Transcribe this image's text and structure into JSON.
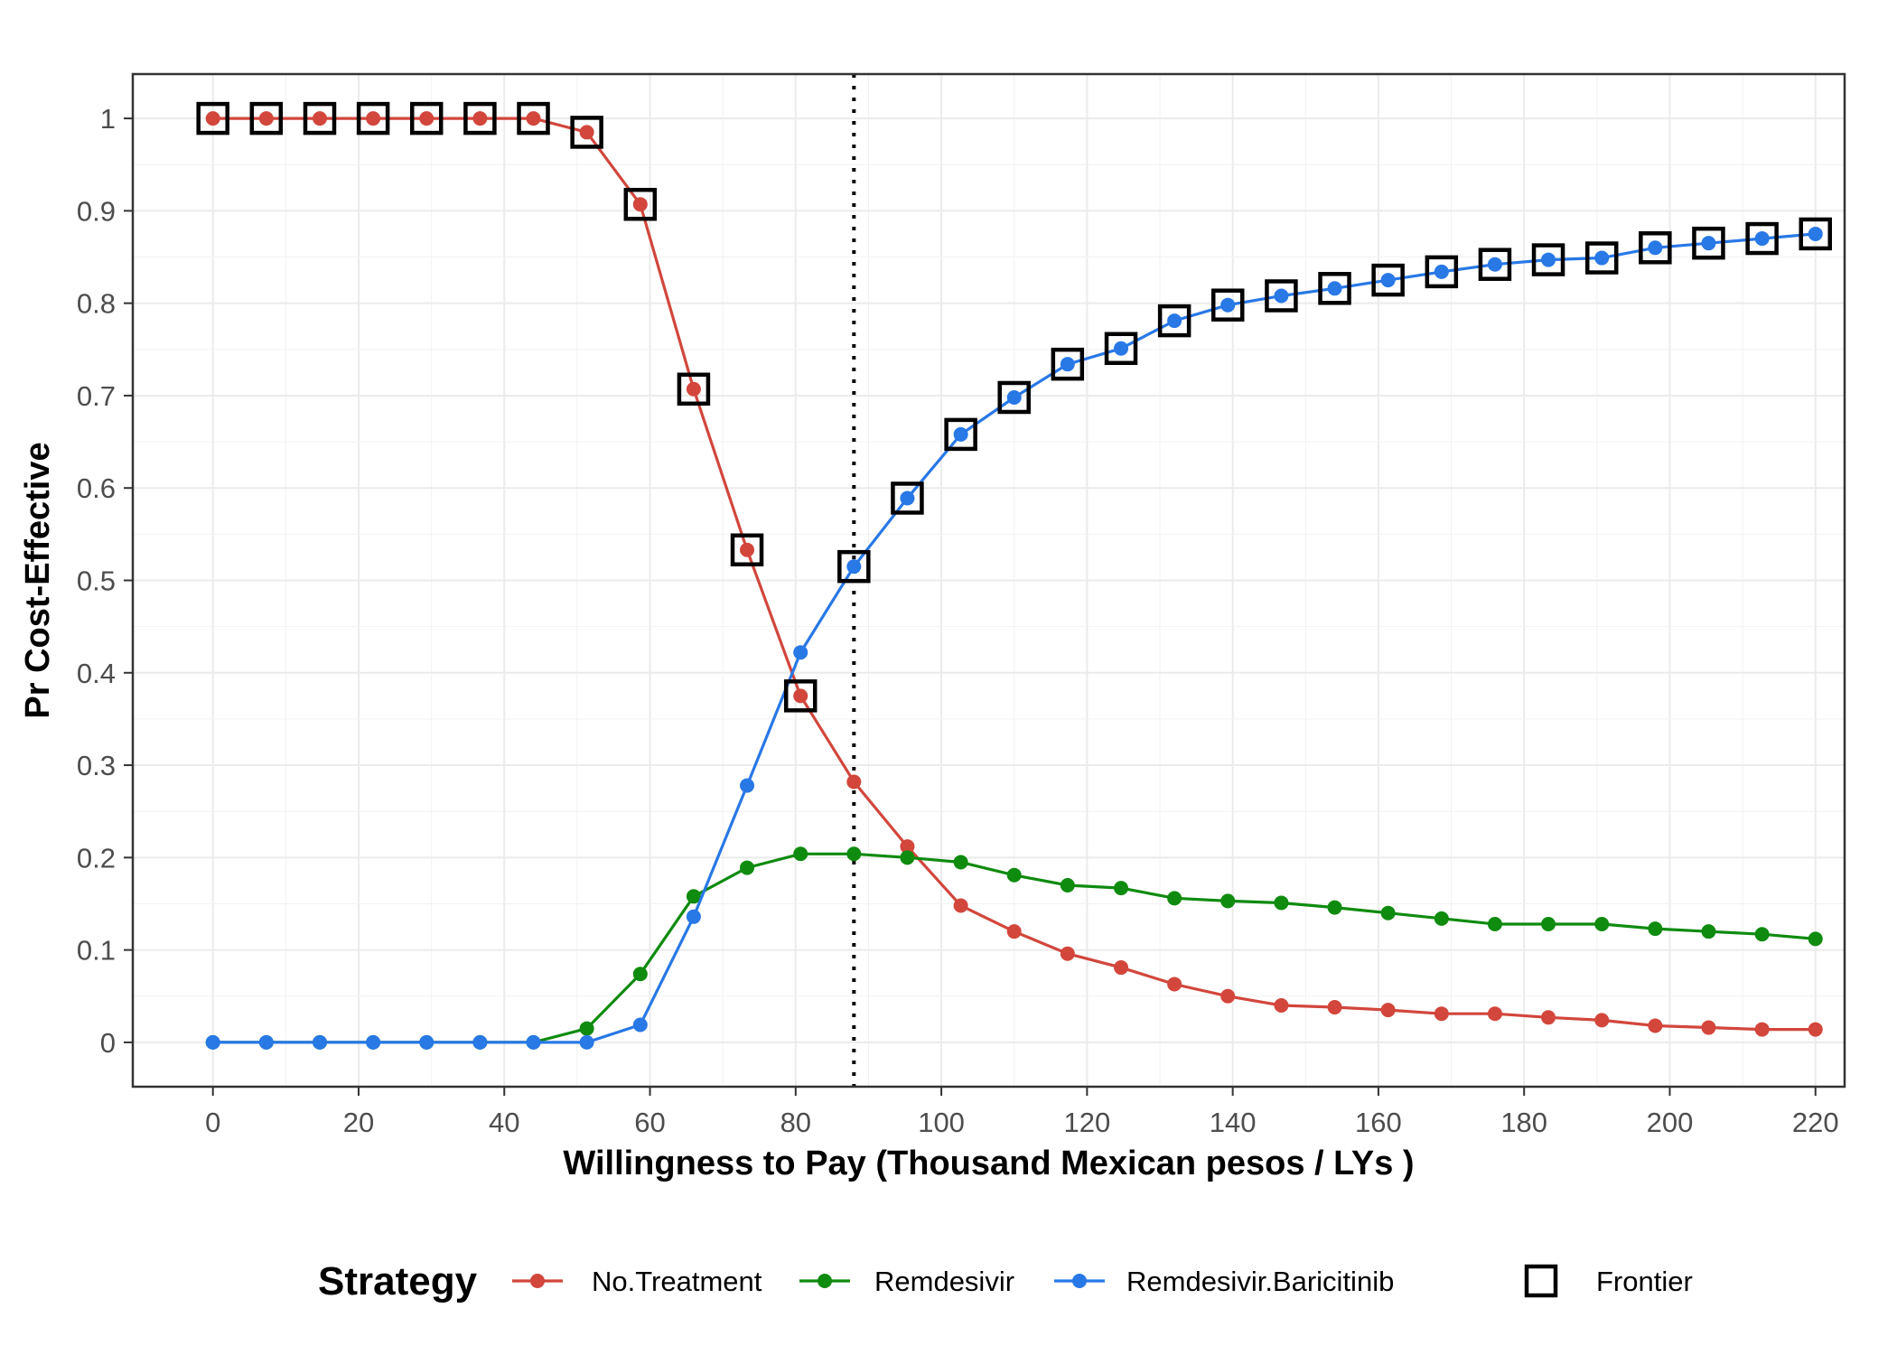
{
  "chart_data": {
    "type": "line",
    "xlabel": "Willingness to Pay (Thousand Mexican pesos / LYs )",
    "ylabel": "Pr Cost-Effective",
    "xlim": [
      -11,
      224
    ],
    "ylim": [
      -0.048,
      1.048
    ],
    "x_ticks": [
      0,
      20,
      40,
      60,
      80,
      100,
      120,
      140,
      160,
      180,
      200,
      220
    ],
    "x_tick_labels": [
      "0",
      "20",
      "40",
      "60",
      "80",
      "100",
      "120",
      "140",
      "160",
      "180",
      "200",
      "220"
    ],
    "y_ticks": [
      0,
      0.1,
      0.2,
      0.3,
      0.4,
      0.5,
      0.6,
      0.7,
      0.8,
      0.9,
      1
    ],
    "y_tick_labels": [
      "0",
      "0.1",
      "0.2",
      "0.3",
      "0.4",
      "0.5",
      "0.6",
      "0.7",
      "0.8",
      "0.9",
      "1"
    ],
    "grid": true,
    "reference_line": {
      "x": 88,
      "style": "dotted"
    },
    "x": [
      0,
      7.33,
      14.67,
      22,
      29.33,
      36.67,
      44,
      51.33,
      58.67,
      66,
      73.33,
      80.67,
      88,
      95.33,
      102.67,
      110,
      117.33,
      124.67,
      132,
      139.33,
      146.67,
      154,
      161.33,
      168.67,
      176,
      183.33,
      190.67,
      198,
      205.33,
      212.67,
      220
    ],
    "series": [
      {
        "name": "No.Treatment",
        "color": "#d2463c",
        "values": [
          1,
          1,
          1,
          1,
          1,
          1,
          1,
          0.985,
          0.907,
          0.707,
          0.533,
          0.375,
          0.282,
          0.212,
          0.148,
          0.12,
          0.096,
          0.081,
          0.063,
          0.05,
          0.04,
          0.038,
          0.035,
          0.031,
          0.031,
          0.027,
          0.024,
          0.018,
          0.016,
          0.014,
          0.014
        ]
      },
      {
        "name": "Remdesivir",
        "color": "#0f8b0f",
        "values": [
          0,
          0,
          0,
          0,
          0,
          0,
          0,
          0.015,
          0.074,
          0.158,
          0.189,
          0.204,
          0.204,
          0.2,
          0.195,
          0.181,
          0.17,
          0.167,
          0.156,
          0.153,
          0.151,
          0.146,
          0.14,
          0.134,
          0.128,
          0.128,
          0.128,
          0.123,
          0.12,
          0.117,
          0.112
        ]
      },
      {
        "name": "Remdesivir.Baricitinib",
        "color": "#2878e6",
        "values": [
          0,
          0,
          0,
          0,
          0,
          0,
          0,
          0,
          0.019,
          0.136,
          0.278,
          0.422,
          0.515,
          0.589,
          0.658,
          0.698,
          0.734,
          0.751,
          0.781,
          0.798,
          0.808,
          0.816,
          0.825,
          0.834,
          0.842,
          0.847,
          0.849,
          0.86,
          0.865,
          0.87,
          0.875
        ]
      }
    ],
    "frontier": {
      "name": "Frontier",
      "points": [
        [
          0,
          1
        ],
        [
          7.33,
          1
        ],
        [
          14.67,
          1
        ],
        [
          22,
          1
        ],
        [
          29.33,
          1
        ],
        [
          36.67,
          1
        ],
        [
          44,
          1
        ],
        [
          51.33,
          0.985
        ],
        [
          58.67,
          0.907
        ],
        [
          66,
          0.707
        ],
        [
          73.33,
          0.533
        ],
        [
          80.67,
          0.375
        ],
        [
          88,
          0.515
        ],
        [
          95.33,
          0.589
        ],
        [
          102.67,
          0.658
        ],
        [
          110,
          0.698
        ],
        [
          117.33,
          0.734
        ],
        [
          124.67,
          0.751
        ],
        [
          132,
          0.781
        ],
        [
          139.33,
          0.798
        ],
        [
          146.67,
          0.808
        ],
        [
          154,
          0.816
        ],
        [
          161.33,
          0.825
        ],
        [
          168.67,
          0.834
        ],
        [
          176,
          0.842
        ],
        [
          183.33,
          0.847
        ],
        [
          190.67,
          0.849
        ],
        [
          198,
          0.86
        ],
        [
          205.33,
          0.865
        ],
        [
          212.67,
          0.87
        ],
        [
          220,
          0.875
        ]
      ]
    },
    "legend": {
      "title": "Strategy",
      "position": "bottom",
      "frontier_label": "Frontier"
    }
  }
}
